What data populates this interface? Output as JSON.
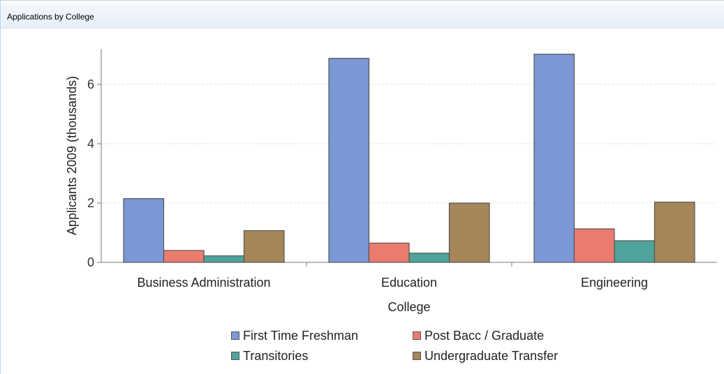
{
  "panel": {
    "title": "Applications by College"
  },
  "chart_data": {
    "type": "bar",
    "title": "",
    "xlabel": "College",
    "ylabel": "Applicants 2009 (thousands)",
    "categories": [
      "Business Administration",
      "Education",
      "Engineering"
    ],
    "ylim": [
      0,
      7.2
    ],
    "yticks": [
      0,
      2,
      4,
      6
    ],
    "grid": true,
    "legend_position": "bottom",
    "series": [
      {
        "name": "First Time Freshman",
        "color": "#7b97d6",
        "values": [
          2.15,
          6.88,
          7.02
        ]
      },
      {
        "name": "Post Bacc / Graduate",
        "color": "#eb7b6e",
        "values": [
          0.4,
          0.65,
          1.13
        ]
      },
      {
        "name": "Transitories",
        "color": "#4ea39b",
        "values": [
          0.22,
          0.31,
          0.73
        ]
      },
      {
        "name": "Undergraduate Transfer",
        "color": "#a68558",
        "values": [
          1.07,
          2.0,
          2.03
        ]
      }
    ]
  }
}
